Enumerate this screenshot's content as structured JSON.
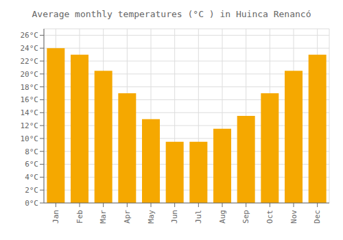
{
  "chart_data": {
    "type": "bar",
    "title": "Average monthly temperatures (°C ) in Huinca Renancó",
    "categories": [
      "Jan",
      "Feb",
      "Mar",
      "Apr",
      "May",
      "Jun",
      "Jul",
      "Aug",
      "Sep",
      "Oct",
      "Nov",
      "Dec"
    ],
    "values": [
      24.0,
      23.0,
      20.5,
      17.0,
      13.0,
      9.5,
      9.5,
      11.5,
      13.5,
      17.0,
      20.5,
      23.0
    ],
    "color": "#F5A800",
    "ylim": [
      0,
      27
    ],
    "yticks": [
      {
        "value": 0,
        "label": "0°C"
      },
      {
        "value": 2,
        "label": "2°C"
      },
      {
        "value": 4,
        "label": "4°C"
      },
      {
        "value": 6,
        "label": "6°C"
      },
      {
        "value": 8,
        "label": "8°C"
      },
      {
        "value": 10,
        "label": "10°C"
      },
      {
        "value": 12,
        "label": "12°C"
      },
      {
        "value": 14,
        "label": "14°C"
      },
      {
        "value": 16,
        "label": "16°C"
      },
      {
        "value": 18,
        "label": "18°C"
      },
      {
        "value": 20,
        "label": "20°C"
      },
      {
        "value": 22,
        "label": "22°C"
      },
      {
        "value": 24,
        "label": "24°C"
      },
      {
        "value": 26,
        "label": "26°C"
      }
    ],
    "grid": true
  }
}
